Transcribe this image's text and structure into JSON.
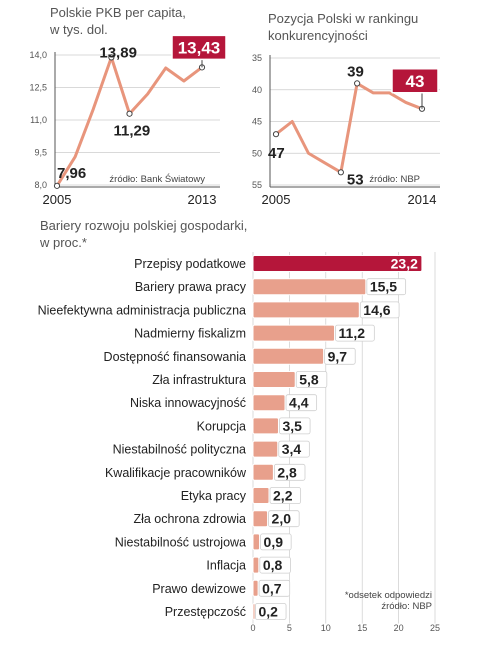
{
  "colors": {
    "accent": "#b5163a",
    "line": "#e8957c",
    "bar": "#e8a08c",
    "grid": "#cccccc",
    "axis": "#555555"
  },
  "chart_data": [
    {
      "type": "line",
      "title": [
        "Polskie PKB per capita,",
        "w tys. dol."
      ],
      "x": [
        2005,
        2006,
        2007,
        2008,
        2009,
        2010,
        2011,
        2012,
        2013
      ],
      "x_tick_labels": [
        "2005",
        "2013"
      ],
      "values": [
        7.96,
        9.3,
        11.5,
        13.89,
        11.29,
        12.2,
        13.4,
        12.8,
        13.43
      ],
      "yticks": [
        "14,0",
        "12,5",
        "11,0",
        "9,5",
        "8,0"
      ],
      "ytick_values": [
        14.0,
        12.5,
        11.0,
        9.5,
        8.0
      ],
      "ylim": [
        8.0,
        14.0
      ],
      "point_labels": [
        {
          "index": 0,
          "text": "7,96"
        },
        {
          "index": 3,
          "text": "13,89"
        },
        {
          "index": 4,
          "text": "11,29"
        }
      ],
      "highlight": {
        "index": 8,
        "text": "13,43"
      },
      "source": "źródło: Bank Światowy"
    },
    {
      "type": "line",
      "title": [
        "Pozycja Polski w rankingu",
        "konkurencyjności"
      ],
      "x": [
        2005,
        2006,
        2007,
        2008,
        2009,
        2010,
        2011,
        2012,
        2013,
        2014
      ],
      "x_tick_labels": [
        "2005",
        "2014"
      ],
      "values": [
        47,
        45,
        50,
        51.5,
        53,
        39,
        40.5,
        40.5,
        42,
        43
      ],
      "yticks": [
        "35",
        "40",
        "45",
        "50",
        "55"
      ],
      "ytick_values": [
        35,
        40,
        45,
        50,
        55
      ],
      "ylim": [
        35,
        55
      ],
      "y_inverted": true,
      "point_labels": [
        {
          "index": 0,
          "text": "47"
        },
        {
          "index": 4,
          "text": "53"
        },
        {
          "index": 5,
          "text": "39"
        }
      ],
      "highlight": {
        "index": 9,
        "text": "43"
      },
      "source": "źródło: NBP"
    },
    {
      "type": "bar",
      "orientation": "horizontal",
      "title": [
        "Bariery rozwoju polskiej gospodarki,",
        "w proc.*"
      ],
      "categories": [
        "Przepisy podatkowe",
        "Bariery prawa pracy",
        "Nieefektywna administracja publiczna",
        "Nadmierny fiskalizm",
        "Dostępność finansowania",
        "Zła infrastruktura",
        "Niska innowacyjność",
        "Korupcja",
        "Niestabilność polityczna",
        "Kwalifikacje pracowników",
        "Etyka pracy",
        "Zła ochrona zdrowia",
        "Niestabilność ustrojowa",
        "Inflacja",
        "Prawo dewizowe",
        "Przestępczość"
      ],
      "values": [
        23.2,
        15.5,
        14.6,
        11.2,
        9.7,
        5.8,
        4.4,
        3.5,
        3.4,
        2.8,
        2.2,
        2.0,
        0.9,
        0.8,
        0.7,
        0.2
      ],
      "value_labels": [
        "23,2",
        "15,5",
        "14,6",
        "11,2",
        "9,7",
        "5,8",
        "4,4",
        "3,5",
        "3,4",
        "2,8",
        "2,2",
        "2,0",
        "0,9",
        "0,8",
        "0,7",
        "0,2"
      ],
      "xticks": [
        "0",
        "5",
        "10",
        "15",
        "20",
        "25"
      ],
      "xtick_values": [
        0,
        5,
        10,
        15,
        20,
        25
      ],
      "xlim": [
        0,
        25
      ],
      "grid": true,
      "note": [
        "*odsetek odpowiedzi",
        "źródło: NBP"
      ]
    }
  ]
}
